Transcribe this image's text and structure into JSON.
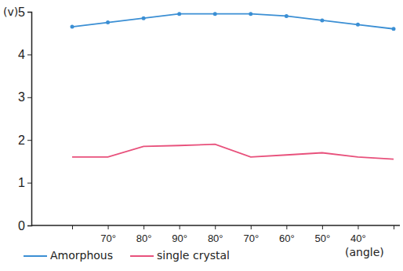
{
  "chart_data": {
    "type": "line",
    "y_label": "(v)",
    "x_label": "(angle)",
    "categories": [
      null,
      "70°",
      "80°",
      "90°",
      "80°",
      "70°",
      "60°",
      "50°",
      "40°",
      null
    ],
    "series": [
      {
        "name": "Amorphous",
        "color": "#3b8fd4",
        "marker": "circle",
        "values": [
          4.65,
          4.75,
          4.85,
          4.95,
          4.95,
          4.95,
          4.9,
          4.8,
          4.7,
          4.6
        ]
      },
      {
        "name": "single crystal",
        "color": "#e8517c",
        "marker": "none",
        "values": [
          1.6,
          1.6,
          1.85,
          1.87,
          1.9,
          1.6,
          1.65,
          1.7,
          1.6,
          1.55
        ]
      }
    ],
    "ylim": [
      0,
      5
    ],
    "yticks": [
      0,
      1,
      2,
      3,
      4,
      5
    ],
    "grid": false,
    "legend": "bottom"
  }
}
